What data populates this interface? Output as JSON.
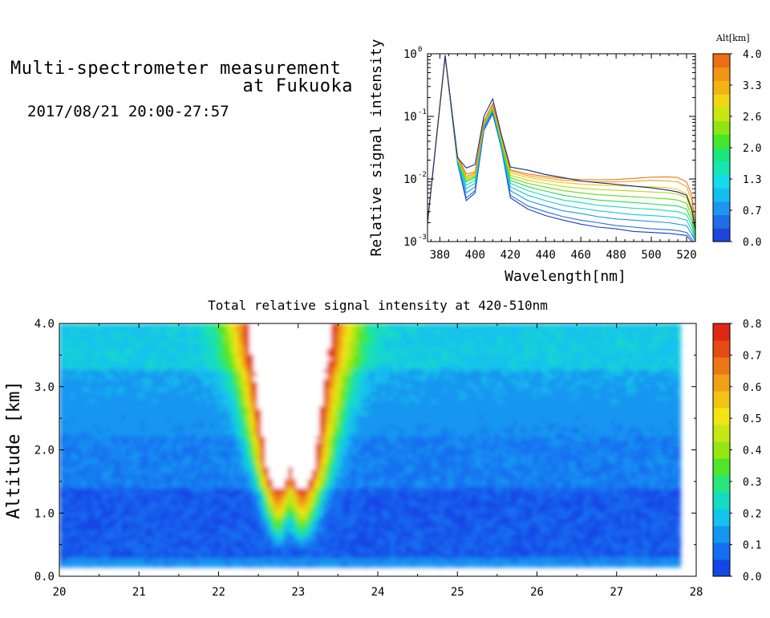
{
  "header": {
    "title_line1": "Multi-spectrometer measurement",
    "title_line2": "at Fukuoka",
    "date_range": "2017/08/21 20:00-27:57"
  },
  "chart_data": [
    {
      "type": "line",
      "xlabel": "Wavelength[nm]",
      "ylabel": "Relative signal intensity",
      "xlim": [
        373,
        525
      ],
      "ylim": [
        0.001,
        1
      ],
      "y_scale": "log",
      "x_ticks": [
        380,
        400,
        420,
        440,
        460,
        480,
        500,
        520
      ],
      "y_ticks": [
        {
          "value": 1,
          "label": "10",
          "exp": "0"
        },
        {
          "value": 0.1,
          "label": "10",
          "exp": "-1"
        },
        {
          "value": 0.01,
          "label": "10",
          "exp": "-2"
        },
        {
          "value": 0.001,
          "label": "10",
          "exp": "-3"
        }
      ],
      "grid": false,
      "x": [
        373,
        383,
        390,
        395,
        400,
        405,
        410,
        415,
        420,
        430,
        440,
        450,
        460,
        470,
        480,
        490,
        500,
        510,
        515,
        520,
        523,
        525
      ],
      "series": [
        {
          "alt": 0.2,
          "color": "#1e3cc8",
          "values": [
            0.002,
            0.9,
            0.018,
            0.0045,
            0.006,
            0.06,
            0.11,
            0.03,
            0.005,
            0.0033,
            0.0026,
            0.0022,
            0.0019,
            0.0017,
            0.0016,
            0.00145,
            0.0014,
            0.00135,
            0.0013,
            0.00125,
            0.001,
            0.0009
          ]
        },
        {
          "alt": 0.5,
          "color": "#1f6edc",
          "values": [
            0.002,
            0.9,
            0.018,
            0.005,
            0.0065,
            0.065,
            0.12,
            0.03,
            0.0055,
            0.0037,
            0.003,
            0.0025,
            0.0022,
            0.002,
            0.0018,
            0.0017,
            0.0016,
            0.00155,
            0.0015,
            0.0014,
            0.0011,
            0.0009
          ]
        },
        {
          "alt": 0.9,
          "color": "#1e96e6",
          "values": [
            0.002,
            0.9,
            0.019,
            0.006,
            0.0075,
            0.068,
            0.125,
            0.032,
            0.0065,
            0.0045,
            0.0037,
            0.0031,
            0.0028,
            0.0025,
            0.0023,
            0.0022,
            0.0021,
            0.002,
            0.0019,
            0.0018,
            0.0013,
            0.001
          ]
        },
        {
          "alt": 1.2,
          "color": "#14c8dc",
          "values": [
            0.002,
            0.9,
            0.019,
            0.007,
            0.0085,
            0.07,
            0.13,
            0.034,
            0.0075,
            0.0055,
            0.0045,
            0.0038,
            0.0034,
            0.0031,
            0.0029,
            0.0027,
            0.0026,
            0.0025,
            0.0024,
            0.0022,
            0.0015,
            0.001
          ]
        },
        {
          "alt": 1.5,
          "color": "#14dcaa",
          "values": [
            0.002,
            0.9,
            0.02,
            0.008,
            0.0095,
            0.072,
            0.13,
            0.036,
            0.0085,
            0.0065,
            0.0054,
            0.0046,
            0.0042,
            0.0038,
            0.0036,
            0.0034,
            0.0033,
            0.0031,
            0.003,
            0.0027,
            0.0018,
            0.0011
          ]
        },
        {
          "alt": 1.9,
          "color": "#28dc50",
          "values": [
            0.002,
            0.9,
            0.02,
            0.009,
            0.0105,
            0.074,
            0.135,
            0.038,
            0.0095,
            0.0075,
            0.0064,
            0.0055,
            0.005,
            0.0046,
            0.0044,
            0.0042,
            0.004,
            0.0038,
            0.0037,
            0.0033,
            0.0021,
            0.0012
          ]
        },
        {
          "alt": 2.3,
          "color": "#64dc14",
          "values": [
            0.002,
            0.9,
            0.021,
            0.0095,
            0.011,
            0.076,
            0.14,
            0.04,
            0.0105,
            0.0085,
            0.0074,
            0.0065,
            0.006,
            0.0056,
            0.0054,
            0.0052,
            0.005,
            0.0048,
            0.0046,
            0.0041,
            0.0025,
            0.0013
          ]
        },
        {
          "alt": 2.7,
          "color": "#b4dc14",
          "values": [
            0.002,
            0.9,
            0.021,
            0.01,
            0.0115,
            0.078,
            0.14,
            0.042,
            0.0115,
            0.0095,
            0.0085,
            0.0076,
            0.0071,
            0.0068,
            0.0066,
            0.0064,
            0.0062,
            0.006,
            0.0057,
            0.005,
            0.003,
            0.0014
          ]
        },
        {
          "alt": 3.1,
          "color": "#f0c814",
          "values": [
            0.002,
            0.9,
            0.022,
            0.0105,
            0.012,
            0.08,
            0.145,
            0.044,
            0.0125,
            0.0105,
            0.0095,
            0.0087,
            0.0083,
            0.008,
            0.0078,
            0.0077,
            0.0075,
            0.0072,
            0.0068,
            0.0058,
            0.0035,
            0.0015
          ]
        },
        {
          "alt": 3.5,
          "color": "#f0a014",
          "values": [
            0.002,
            0.9,
            0.022,
            0.011,
            0.0125,
            0.082,
            0.15,
            0.046,
            0.0135,
            0.0113,
            0.0103,
            0.0095,
            0.0092,
            0.009,
            0.009,
            0.0092,
            0.0095,
            0.0093,
            0.009,
            0.0075,
            0.0045,
            0.0016
          ]
        },
        {
          "alt": 3.8,
          "color": "#eb7814",
          "values": [
            0.002,
            0.9,
            0.023,
            0.012,
            0.013,
            0.085,
            0.16,
            0.048,
            0.014,
            0.012,
            0.011,
            0.0102,
            0.0098,
            0.0097,
            0.0098,
            0.0102,
            0.0107,
            0.0108,
            0.0105,
            0.009,
            0.0055,
            0.0017
          ]
        },
        {
          "alt": 0.0,
          "color": "#1a2a80",
          "values": [
            0.002,
            0.95,
            0.022,
            0.015,
            0.017,
            0.1,
            0.19,
            0.05,
            0.0155,
            0.0138,
            0.0118,
            0.0105,
            0.0093,
            0.0087,
            0.0082,
            0.0077,
            0.0072,
            0.0066,
            0.0062,
            0.0055,
            0.0032,
            0.0015
          ]
        }
      ],
      "colorbar": {
        "label": "Alt[km]",
        "ticks": [
          "0.0",
          "0.7",
          "1.3",
          "2.0",
          "2.6",
          "3.3",
          "4.0"
        ],
        "bands": [
          "#1e46dc",
          "#1e6ee6",
          "#1e96f0",
          "#14bef0",
          "#14dce6",
          "#14e6b4",
          "#1ee67d",
          "#46e628",
          "#8ce614",
          "#c8e614",
          "#f0d714",
          "#f0b414",
          "#f09614",
          "#eb6e14"
        ]
      }
    },
    {
      "type": "heatmap",
      "title": "Total relative signal intensity at 420-510nm",
      "ylabel": "Altitude [km]",
      "xlim": [
        20,
        28
      ],
      "ylim": [
        0,
        4
      ],
      "x_ticks": [
        "20",
        "21",
        "22",
        "23",
        "24",
        "25",
        "26",
        "27",
        "28"
      ],
      "y_ticks": [
        "0.0",
        "1.0",
        "2.0",
        "3.0",
        "4.0"
      ],
      "data_range": {
        "time": [
          20,
          27.8
        ],
        "altitude": [
          0.15,
          4.0
        ]
      },
      "smoke_plume": {
        "center_time": 23,
        "peak_value": 0.8,
        "lower_lobes_time": [
          22.75,
          23.05
        ],
        "top_altitude": 4.0,
        "lowest_altitude": 1.0
      },
      "background_values": {
        "near_surface": 0.05,
        "mid_level": 0.1,
        "upper_level": 0.2
      },
      "colorbar": {
        "ticks": [
          "0.0",
          "0.1",
          "0.2",
          "0.3",
          "0.4",
          "0.5",
          "0.6",
          "0.7",
          "0.8"
        ],
        "min": 0,
        "max": 0.8,
        "colors": [
          "#1446e6",
          "#146ef0",
          "#1496f0",
          "#14c3eb",
          "#14dcc3",
          "#28e67d",
          "#50e628",
          "#96e614",
          "#c8e614",
          "#f0e614",
          "#f0c314",
          "#f0a014",
          "#eb7814",
          "#e64b14",
          "#dc2814"
        ]
      }
    }
  ]
}
